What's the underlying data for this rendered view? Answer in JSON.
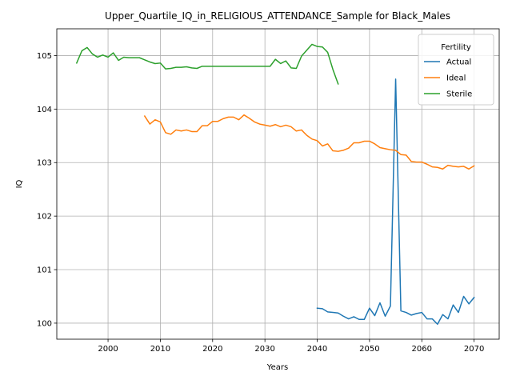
{
  "chart_data": {
    "type": "line",
    "title": "Upper_Quartile_IQ_in_RELIGIOUS_ATTENDANCE_Sample for Black_Males",
    "xlabel": "Years",
    "ylabel": "IQ",
    "xlim": [
      1990.2,
      2074.8
    ],
    "ylim": [
      99.7,
      105.5
    ],
    "xticks": [
      2000,
      2010,
      2020,
      2030,
      2040,
      2050,
      2060,
      2070
    ],
    "yticks": [
      100,
      101,
      102,
      103,
      104,
      105
    ],
    "grid": true,
    "legend": {
      "title": "Fertility",
      "position": "top-right"
    },
    "series": [
      {
        "name": "Actual",
        "color": "#1f77b4",
        "x": [
          2040,
          2041,
          2042,
          2043,
          2044,
          2045,
          2046,
          2047,
          2048,
          2049,
          2050,
          2051,
          2052,
          2053,
          2054,
          2055,
          2056,
          2057,
          2058,
          2059,
          2060,
          2061,
          2062,
          2063,
          2064,
          2065,
          2066,
          2067,
          2068,
          2069,
          2070
        ],
        "y": [
          100.28,
          100.27,
          100.21,
          100.2,
          100.19,
          100.13,
          100.08,
          100.12,
          100.07,
          100.07,
          100.28,
          100.14,
          100.38,
          100.13,
          100.32,
          104.56,
          100.23,
          100.2,
          100.15,
          100.18,
          100.2,
          100.08,
          100.08,
          99.98,
          100.16,
          100.08,
          100.34,
          100.2,
          100.5,
          100.36,
          100.48
        ]
      },
      {
        "name": "Ideal",
        "color": "#ff7f0e",
        "x": [
          2007,
          2008,
          2009,
          2010,
          2011,
          2012,
          2013,
          2014,
          2015,
          2016,
          2017,
          2018,
          2019,
          2020,
          2021,
          2022,
          2023,
          2024,
          2025,
          2026,
          2027,
          2028,
          2029,
          2030,
          2031,
          2032,
          2033,
          2034,
          2035,
          2036,
          2037,
          2038,
          2039,
          2040,
          2041,
          2042,
          2043,
          2044,
          2045,
          2046,
          2047,
          2048,
          2049,
          2050,
          2051,
          2052,
          2053,
          2054,
          2055,
          2056,
          2057,
          2058,
          2059,
          2060,
          2061,
          2062,
          2063,
          2064,
          2065,
          2066,
          2067,
          2068,
          2069,
          2070
        ],
        "y": [
          103.87,
          103.72,
          103.8,
          103.76,
          103.56,
          103.53,
          103.61,
          103.59,
          103.61,
          103.58,
          103.58,
          103.69,
          103.69,
          103.77,
          103.77,
          103.82,
          103.85,
          103.85,
          103.8,
          103.89,
          103.83,
          103.76,
          103.72,
          103.7,
          103.68,
          103.71,
          103.67,
          103.7,
          103.67,
          103.59,
          103.61,
          103.51,
          103.44,
          103.41,
          103.31,
          103.35,
          103.22,
          103.21,
          103.23,
          103.27,
          103.37,
          103.37,
          103.4,
          103.4,
          103.35,
          103.28,
          103.26,
          103.24,
          103.23,
          103.15,
          103.14,
          103.02,
          103.01,
          103.01,
          102.97,
          102.92,
          102.91,
          102.88,
          102.95,
          102.93,
          102.92,
          102.93,
          102.88,
          102.94
        ]
      },
      {
        "name": "Sterile",
        "color": "#2ca02c",
        "x": [
          1994,
          1995,
          1996,
          1997,
          1998,
          1999,
          2000,
          2001,
          2002,
          2003,
          2004,
          2005,
          2006,
          2007,
          2008,
          2009,
          2010,
          2011,
          2012,
          2013,
          2014,
          2015,
          2016,
          2017,
          2018,
          2019,
          2020,
          2021,
          2022,
          2023,
          2024,
          2025,
          2026,
          2027,
          2028,
          2029,
          2030,
          2031,
          2032,
          2033,
          2034,
          2035,
          2036,
          2037,
          2038,
          2039,
          2040,
          2041,
          2042,
          2043,
          2044
        ],
        "y": [
          104.86,
          105.09,
          105.15,
          105.03,
          104.97,
          105.01,
          104.97,
          105.05,
          104.91,
          104.97,
          104.96,
          104.96,
          104.96,
          104.92,
          104.88,
          104.85,
          104.86,
          104.75,
          104.76,
          104.78,
          104.78,
          104.79,
          104.77,
          104.76,
          104.8,
          104.8,
          104.8,
          104.8,
          104.8,
          104.8,
          104.8,
          104.8,
          104.8,
          104.8,
          104.8,
          104.8,
          104.8,
          104.8,
          104.93,
          104.85,
          104.9,
          104.77,
          104.76,
          104.99,
          105.1,
          105.21,
          105.17,
          105.16,
          105.06,
          104.74,
          104.47
        ]
      }
    ]
  }
}
